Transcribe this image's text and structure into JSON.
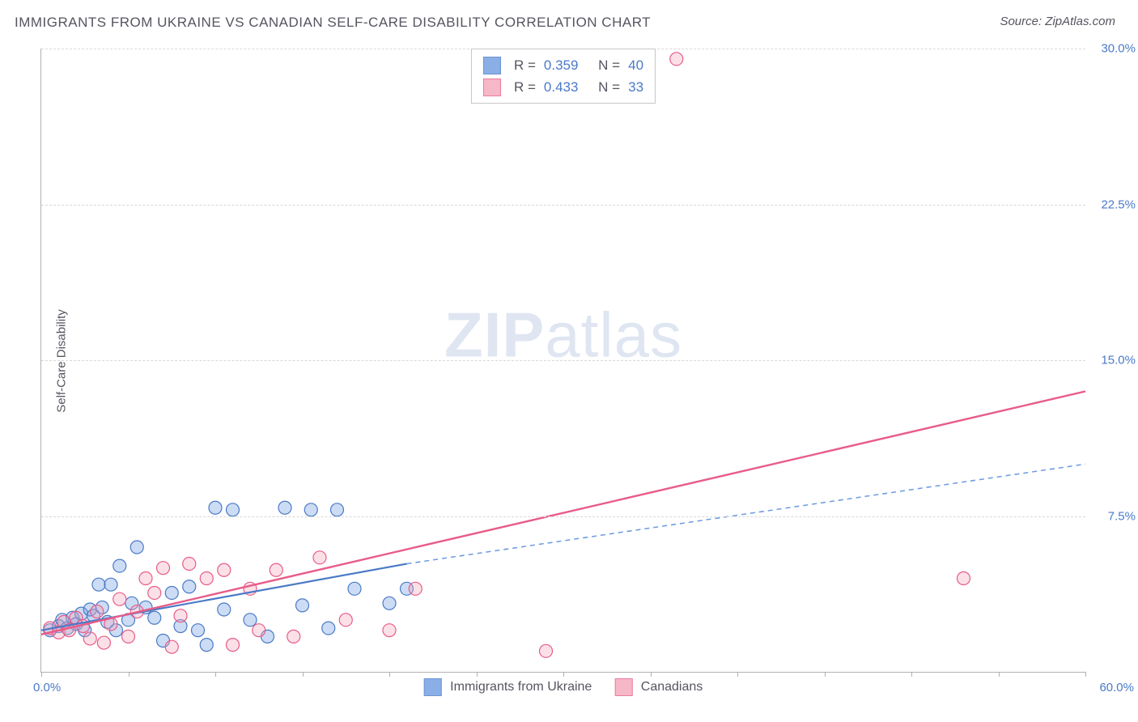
{
  "title": "IMMIGRANTS FROM UKRAINE VS CANADIAN SELF-CARE DISABILITY CORRELATION CHART",
  "source": "Source: ZipAtlas.com",
  "ylabel": "Self-Care Disability",
  "watermark_zip": "ZIP",
  "watermark_atlas": "atlas",
  "chart": {
    "type": "scatter",
    "xlim": [
      0,
      60
    ],
    "ylim": [
      0,
      30
    ],
    "x_tick_step": 5,
    "y_ticks": [
      7.5,
      15.0,
      22.5,
      30.0
    ],
    "y_tick_labels": [
      "7.5%",
      "15.0%",
      "22.5%",
      "30.0%"
    ],
    "xmin_label": "0.0%",
    "xmax_label": "60.0%",
    "grid_color": "#d8d8d8",
    "axis_color": "#b0b0b0",
    "background_color": "#ffffff",
    "tick_label_color": "#4a7ac7",
    "marker_radius": 8,
    "marker_fill_opacity": 0.35,
    "marker_stroke_width": 1.2,
    "series": [
      {
        "name": "Immigrants from Ukraine",
        "color": "#6d9be0",
        "stroke": "#4a7ac7",
        "r_value": "0.359",
        "n_value": "40",
        "points": [
          [
            0.5,
            2.0
          ],
          [
            1.0,
            2.2
          ],
          [
            1.2,
            2.5
          ],
          [
            1.5,
            2.1
          ],
          [
            1.8,
            2.6
          ],
          [
            2.0,
            2.3
          ],
          [
            2.3,
            2.8
          ],
          [
            2.5,
            2.0
          ],
          [
            2.8,
            3.0
          ],
          [
            3.0,
            2.7
          ],
          [
            3.3,
            4.2
          ],
          [
            3.5,
            3.1
          ],
          [
            3.8,
            2.4
          ],
          [
            4.0,
            4.2
          ],
          [
            4.3,
            2.0
          ],
          [
            4.5,
            5.1
          ],
          [
            5.0,
            2.5
          ],
          [
            5.2,
            3.3
          ],
          [
            5.5,
            6.0
          ],
          [
            6.0,
            3.1
          ],
          [
            6.5,
            2.6
          ],
          [
            7.0,
            1.5
          ],
          [
            7.5,
            3.8
          ],
          [
            8.0,
            2.2
          ],
          [
            8.5,
            4.1
          ],
          [
            9.0,
            2.0
          ],
          [
            9.5,
            1.3
          ],
          [
            10.0,
            7.9
          ],
          [
            10.5,
            3.0
          ],
          [
            11.0,
            7.8
          ],
          [
            12.0,
            2.5
          ],
          [
            13.0,
            1.7
          ],
          [
            14.0,
            7.9
          ],
          [
            15.0,
            3.2
          ],
          [
            15.5,
            7.8
          ],
          [
            16.5,
            2.1
          ],
          [
            17.0,
            7.8
          ],
          [
            18.0,
            4.0
          ],
          [
            20.0,
            3.3
          ],
          [
            21.0,
            4.0
          ]
        ],
        "regression": {
          "x1": 0,
          "y1": 2.0,
          "x2": 21,
          "y2": 5.2,
          "extend_x2": 60,
          "extend_y2": 10.0,
          "line_width": 2.2,
          "solid_color": "#4a7ac7",
          "dash_color": "#6d9be0",
          "dash": "6,5"
        }
      },
      {
        "name": "Canadians",
        "color": "#f4a6ba",
        "stroke": "#e85c88",
        "r_value": "0.433",
        "n_value": "33",
        "points": [
          [
            0.5,
            2.1
          ],
          [
            1.0,
            1.9
          ],
          [
            1.3,
            2.4
          ],
          [
            1.6,
            2.0
          ],
          [
            2.0,
            2.6
          ],
          [
            2.4,
            2.2
          ],
          [
            2.8,
            1.6
          ],
          [
            3.2,
            2.9
          ],
          [
            3.6,
            1.4
          ],
          [
            4.0,
            2.3
          ],
          [
            4.5,
            3.5
          ],
          [
            5.0,
            1.7
          ],
          [
            5.5,
            2.9
          ],
          [
            6.0,
            4.5
          ],
          [
            6.5,
            3.8
          ],
          [
            7.0,
            5.0
          ],
          [
            7.5,
            1.2
          ],
          [
            8.0,
            2.7
          ],
          [
            8.5,
            5.2
          ],
          [
            9.5,
            4.5
          ],
          [
            10.5,
            4.9
          ],
          [
            11.0,
            1.3
          ],
          [
            12.0,
            4.0
          ],
          [
            12.5,
            2.0
          ],
          [
            13.5,
            4.9
          ],
          [
            14.5,
            1.7
          ],
          [
            16.0,
            5.5
          ],
          [
            17.5,
            2.5
          ],
          [
            20.0,
            2.0
          ],
          [
            21.5,
            4.0
          ],
          [
            29.0,
            1.0
          ],
          [
            36.5,
            29.5
          ],
          [
            53.0,
            4.5
          ]
        ],
        "regression": {
          "x1": 0,
          "y1": 1.8,
          "x2": 60,
          "y2": 13.5,
          "extend_x2": 60,
          "extend_y2": 13.5,
          "line_width": 2.4,
          "solid_color": "#e85c88",
          "dash_color": "#e85c88",
          "dash": ""
        }
      }
    ]
  },
  "axis_legend": {
    "series1_label": "Immigrants from Ukraine",
    "series2_label": "Canadians"
  },
  "corr_legend": {
    "r_label": "R =",
    "n_label": "N ="
  }
}
